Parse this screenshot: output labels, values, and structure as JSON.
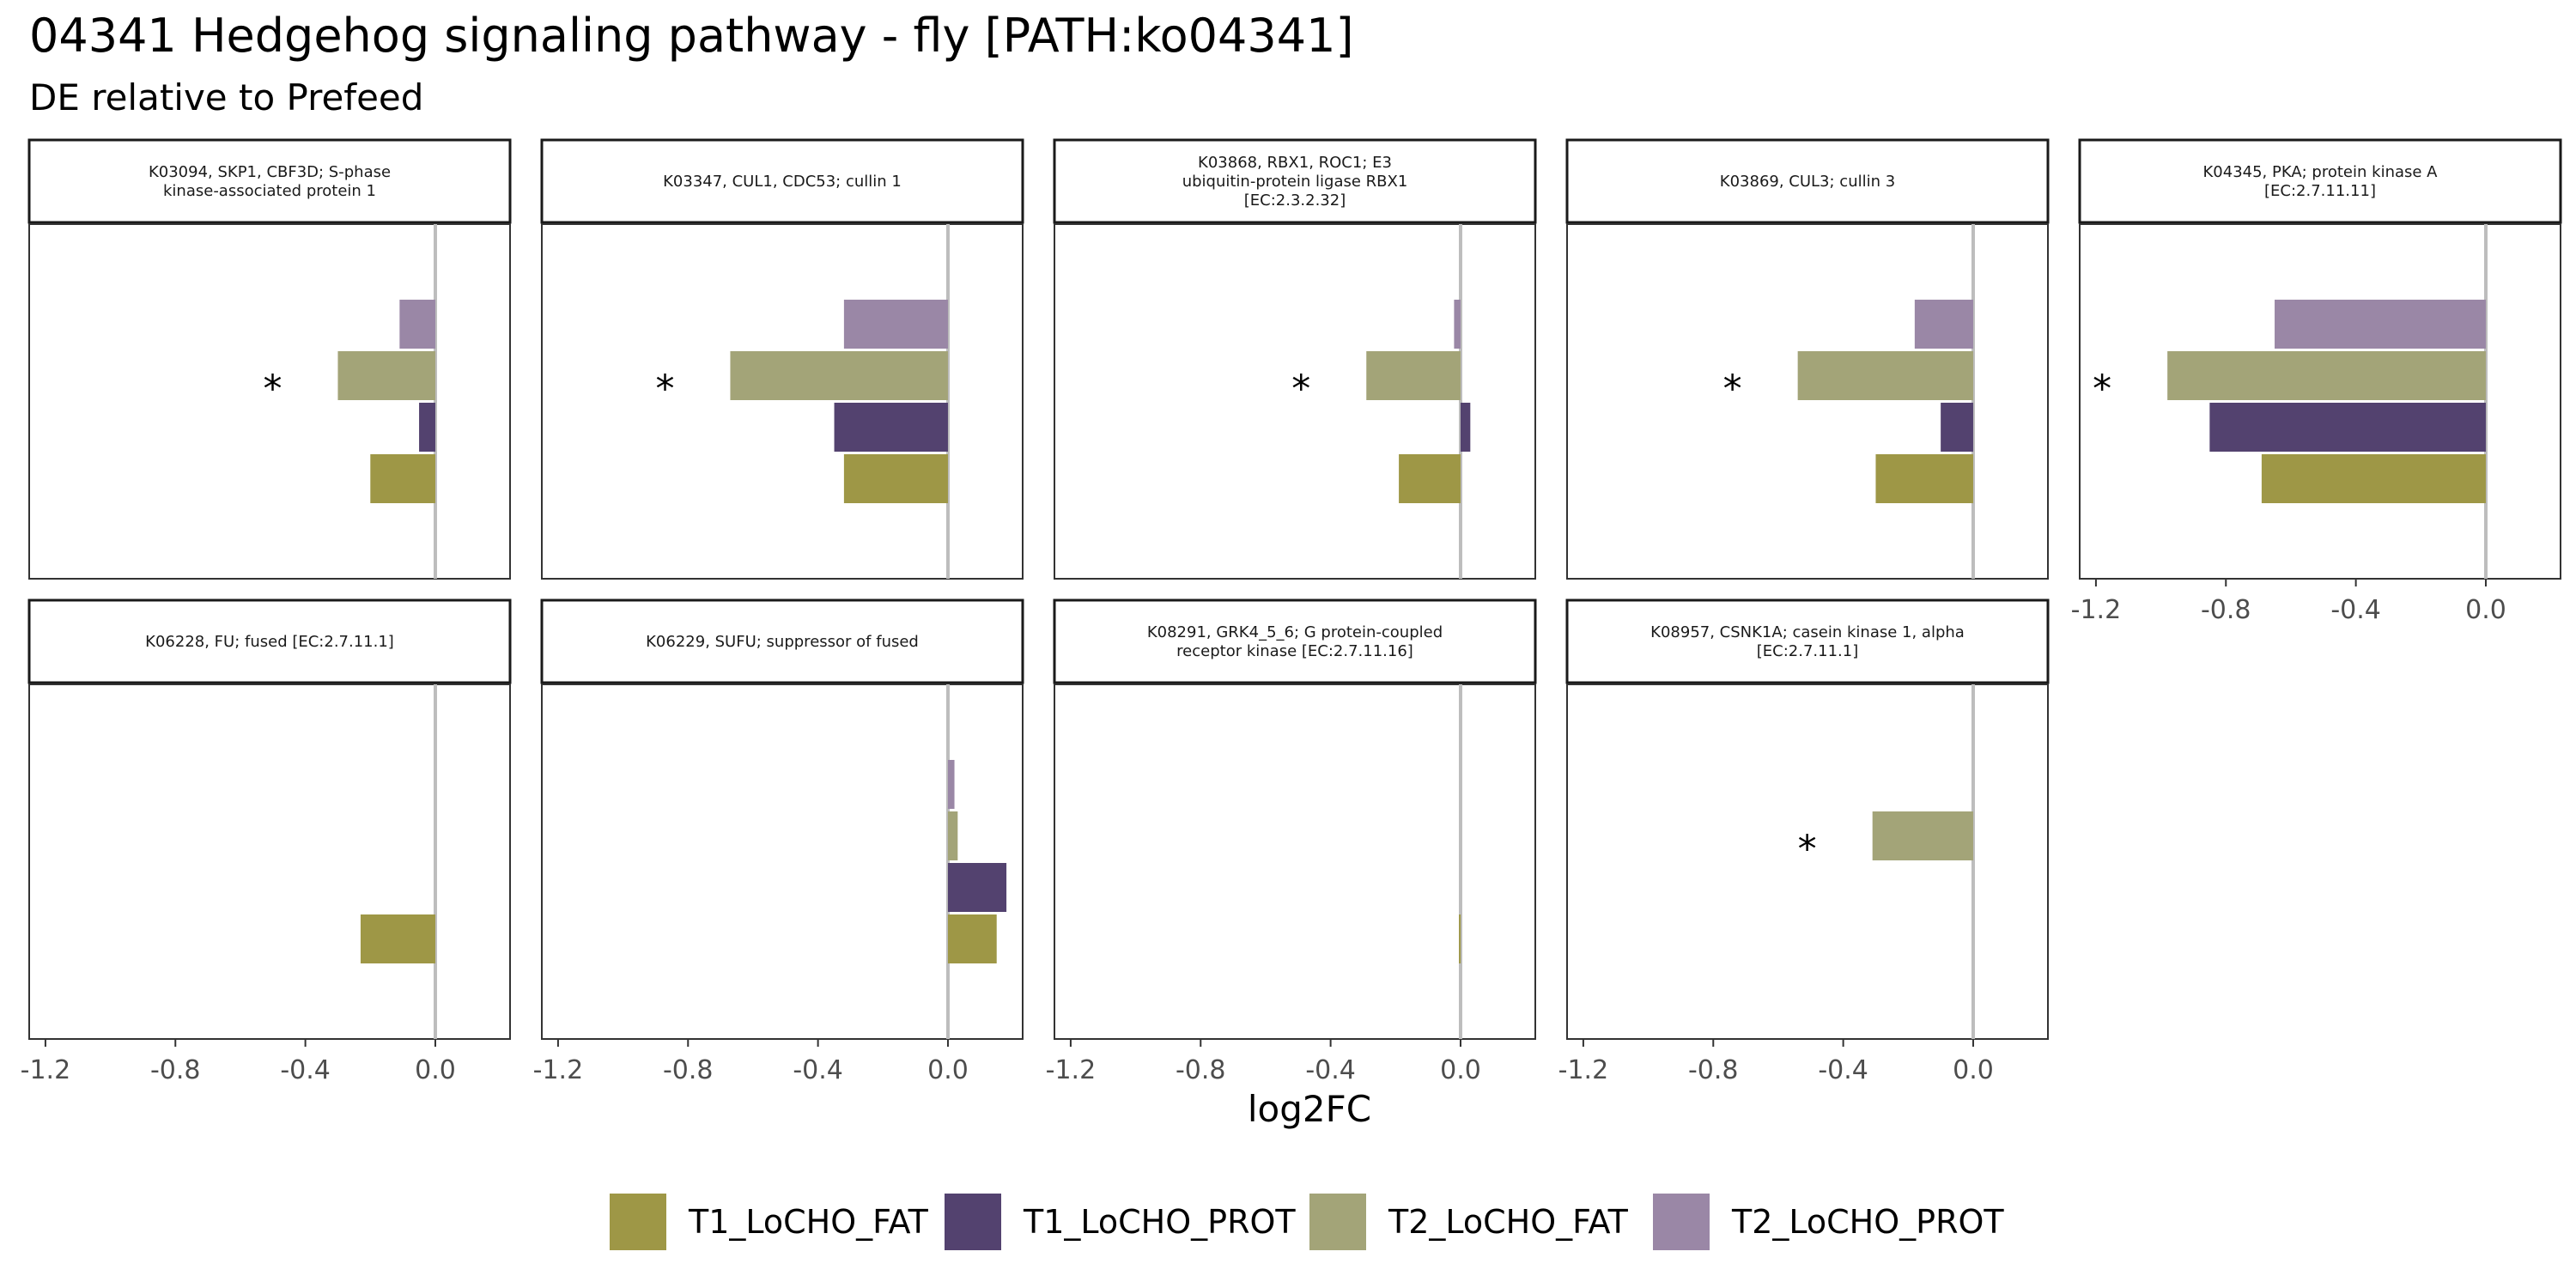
{
  "chart_data": {
    "type": "bar",
    "title": "04341 Hedgehog signaling pathway - fly [PATH:ko04341]",
    "subtitle": "DE relative to Prefeed",
    "xlabel": "log2FC",
    "ylabel": "",
    "xlim": [
      -1.25,
      0.23
    ],
    "x_ticks": [
      -1.2,
      -0.8,
      -0.4,
      0.0
    ],
    "x_tick_labels": [
      "-1.2",
      "-0.8",
      "-0.4",
      "0.0"
    ],
    "grid": false,
    "orientation": "horizontal",
    "legend_position": "bottom",
    "series": [
      {
        "name": "T1_LoCHO_FAT",
        "color": "#9E9746"
      },
      {
        "name": "T1_LoCHO_PROT",
        "color": "#53426F"
      },
      {
        "name": "T2_LoCHO_FAT",
        "color": "#A3A478"
      },
      {
        "name": "T2_LoCHO_PROT",
        "color": "#9A87A6"
      }
    ],
    "panels": [
      {
        "label": [
          "K03094, SKP1, CBF3D; S-phase",
          "kinase-associated protein 1"
        ],
        "values": [
          -0.2,
          -0.05,
          -0.3,
          -0.11
        ],
        "significant": [
          false,
          false,
          true,
          false
        ]
      },
      {
        "label": [
          "K03347, CUL1, CDC53; cullin 1"
        ],
        "values": [
          -0.32,
          -0.35,
          -0.67,
          -0.32
        ],
        "significant": [
          false,
          false,
          true,
          false
        ]
      },
      {
        "label": [
          "K03868, RBX1, ROC1; E3",
          "ubiquitin-protein ligase RBX1",
          "[EC:2.3.2.32]"
        ],
        "values": [
          -0.19,
          0.03,
          -0.29,
          -0.02
        ],
        "significant": [
          false,
          false,
          true,
          false
        ]
      },
      {
        "label": [
          "K03869, CUL3; cullin 3"
        ],
        "values": [
          -0.3,
          -0.1,
          -0.54,
          -0.18
        ],
        "significant": [
          false,
          false,
          true,
          false
        ]
      },
      {
        "label": [
          "K04345, PKA; protein kinase A",
          "[EC:2.7.11.11]"
        ],
        "values": [
          -0.69,
          -0.85,
          -0.98,
          -0.65
        ],
        "significant": [
          false,
          false,
          true,
          false
        ]
      },
      {
        "label": [
          "K06228, FU; fused [EC:2.7.11.1]"
        ],
        "values": [
          -0.23,
          null,
          null,
          null
        ],
        "significant": [
          false,
          false,
          false,
          false
        ]
      },
      {
        "label": [
          "K06229, SUFU; suppressor of fused"
        ],
        "values": [
          0.15,
          0.18,
          0.03,
          0.02
        ],
        "significant": [
          false,
          false,
          false,
          false
        ]
      },
      {
        "label": [
          "K08291, GRK4_5_6; G protein-coupled",
          "receptor kinase [EC:2.7.11.16]"
        ],
        "values": [
          -0.005,
          null,
          null,
          null
        ],
        "significant": [
          false,
          false,
          false,
          false
        ]
      },
      {
        "label": [
          "K08957, CSNK1A; casein kinase 1, alpha",
          "[EC:2.7.11.1]"
        ],
        "values": [
          null,
          null,
          -0.31,
          null
        ],
        "significant": [
          false,
          false,
          true,
          false
        ]
      }
    ],
    "significance_marker": "*"
  }
}
